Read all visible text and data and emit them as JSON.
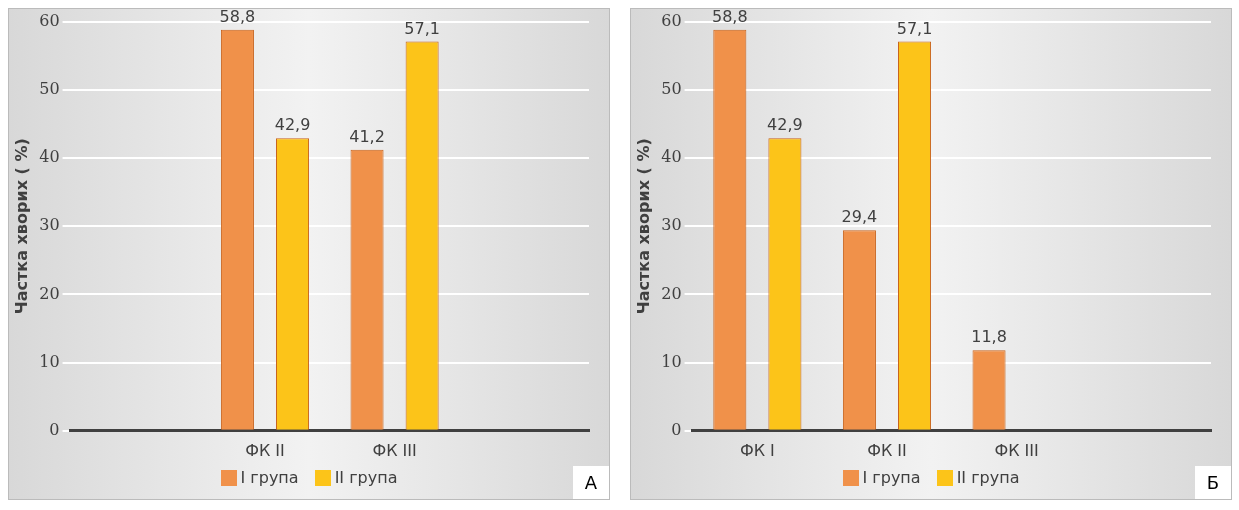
{
  "chart_data": [
    {
      "type": "bar",
      "ylabel": "Частка хворих ( %)",
      "categories": [
        null,
        "ФК II",
        "ФК III",
        null
      ],
      "series": [
        {
          "name": "I група",
          "color": "#f0914a",
          "values": [
            null,
            58.8,
            41.2,
            null
          ],
          "value_labels": [
            null,
            "58,8",
            "41,2",
            null
          ]
        },
        {
          "name": "II група",
          "color": "#fcc419",
          "values": [
            null,
            42.9,
            57.1,
            null
          ],
          "value_labels": [
            null,
            "42,9",
            "57,1",
            null
          ]
        }
      ],
      "ylim": [
        0,
        60
      ],
      "yticks": [
        0,
        10,
        20,
        30,
        40,
        50,
        60
      ],
      "grid": "y",
      "legend": "bottom",
      "annotations": [
        "А"
      ]
    },
    {
      "type": "bar",
      "ylabel": "Частка хворих ( %)",
      "categories": [
        "ФК I",
        "ФК II",
        "ФК III",
        null
      ],
      "series": [
        {
          "name": "I група",
          "color": "#f0914a",
          "values": [
            58.8,
            29.4,
            11.8,
            null
          ],
          "value_labels": [
            "58,8",
            "29,4",
            "11,8",
            null
          ]
        },
        {
          "name": "II група",
          "color": "#fcc419",
          "values": [
            42.9,
            57.1,
            null,
            null
          ],
          "value_labels": [
            "42,9",
            "57,1",
            null,
            null
          ]
        }
      ],
      "ylim": [
        0,
        60
      ],
      "yticks": [
        0,
        10,
        20,
        30,
        40,
        50,
        60
      ],
      "grid": "y",
      "legend": "bottom",
      "annotations": [
        "Б"
      ]
    }
  ]
}
